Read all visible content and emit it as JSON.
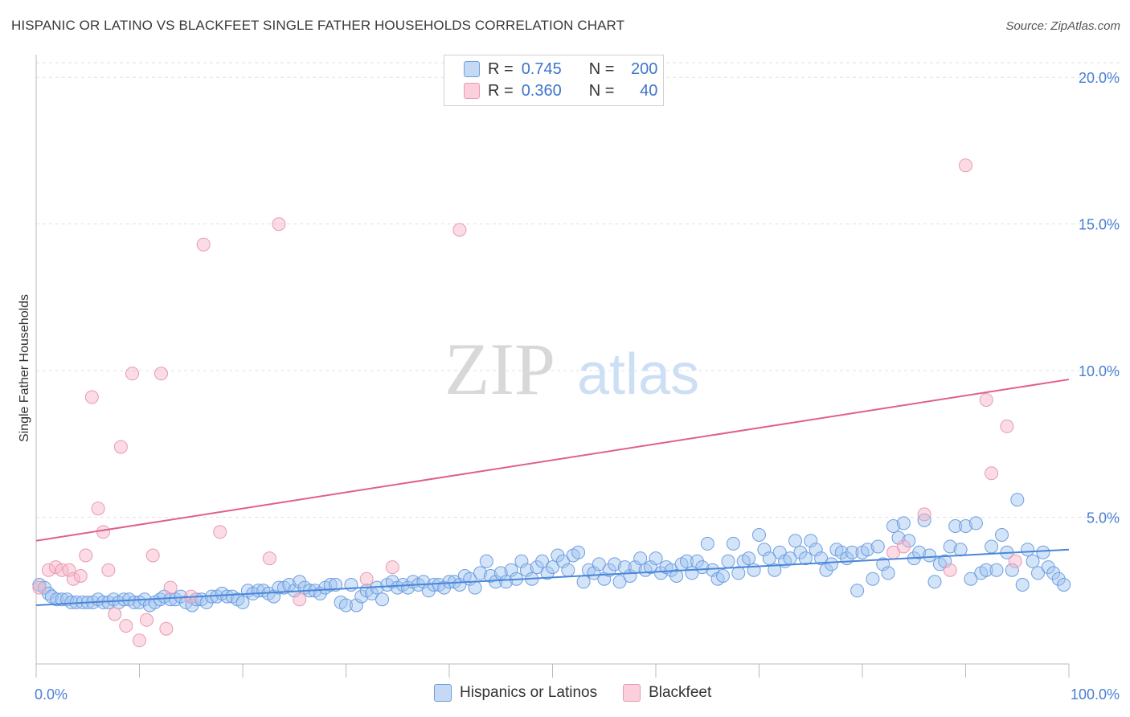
{
  "title": "HISPANIC OR LATINO VS BLACKFEET SINGLE FATHER HOUSEHOLDS CORRELATION CHART",
  "source": "Source: ZipAtlas.com",
  "watermark": {
    "zip": "ZIP",
    "atlas": "atlas"
  },
  "legend": {
    "r_label": "R =",
    "n_label": "N =",
    "rows": [
      {
        "r": "0.745",
        "n": "200",
        "fill": "#c5d9f5",
        "stroke": "#6d9ee0"
      },
      {
        "r": "0.360",
        "n": "40",
        "fill": "#fbd0dc",
        "stroke": "#e89ab2"
      }
    ]
  },
  "bottom_legend": [
    {
      "label": "Hispanics or Latinos",
      "fill": "#c5d9f5",
      "stroke": "#6d9ee0"
    },
    {
      "label": "Blackfeet",
      "fill": "#fbd0dc",
      "stroke": "#e89ab2"
    }
  ],
  "chart_data": {
    "type": "scatter",
    "title": "HISPANIC OR LATINO VS BLACKFEET SINGLE FATHER HOUSEHOLDS CORRELATION CHART",
    "xlabel": "",
    "ylabel": "Single Father Households",
    "xlim": [
      0,
      100
    ],
    "ylim": [
      0,
      20.5
    ],
    "x_tick_labels": [
      "0.0%",
      "100.0%"
    ],
    "y_ticks": [
      5,
      10,
      15,
      20
    ],
    "y_tick_labels": [
      "5.0%",
      "10.0%",
      "15.0%",
      "20.0%"
    ],
    "series": [
      {
        "name": "Hispanics or Latinos",
        "color": "#4a86d8",
        "fill": "rgba(160,196,240,0.45)",
        "stroke": "#6d9ee0",
        "trend": {
          "x": [
            0,
            100
          ],
          "y": [
            2.0,
            3.9
          ]
        },
        "points": [
          [
            0.3,
            2.7
          ],
          [
            0.8,
            2.6
          ],
          [
            1.2,
            2.4
          ],
          [
            1.5,
            2.3
          ],
          [
            2.0,
            2.2
          ],
          [
            2.5,
            2.2
          ],
          [
            3.0,
            2.2
          ],
          [
            3.4,
            2.1
          ],
          [
            3.9,
            2.1
          ],
          [
            4.5,
            2.1
          ],
          [
            5.0,
            2.1
          ],
          [
            5.5,
            2.1
          ],
          [
            6.0,
            2.2
          ],
          [
            6.5,
            2.1
          ],
          [
            7.0,
            2.1
          ],
          [
            7.5,
            2.2
          ],
          [
            8.0,
            2.1
          ],
          [
            8.5,
            2.2
          ],
          [
            9.0,
            2.2
          ],
          [
            9.5,
            2.1
          ],
          [
            10.0,
            2.1
          ],
          [
            10.5,
            2.2
          ],
          [
            11.0,
            2.0
          ],
          [
            11.5,
            2.1
          ],
          [
            12.0,
            2.2
          ],
          [
            12.4,
            2.3
          ],
          [
            13.0,
            2.2
          ],
          [
            13.5,
            2.2
          ],
          [
            14.0,
            2.3
          ],
          [
            14.5,
            2.1
          ],
          [
            15.1,
            2.0
          ],
          [
            15.5,
            2.2
          ],
          [
            16.0,
            2.2
          ],
          [
            16.5,
            2.1
          ],
          [
            17.0,
            2.3
          ],
          [
            17.5,
            2.3
          ],
          [
            18.0,
            2.4
          ],
          [
            18.5,
            2.3
          ],
          [
            19.0,
            2.3
          ],
          [
            19.5,
            2.2
          ],
          [
            20.0,
            2.1
          ],
          [
            20.5,
            2.5
          ],
          [
            21.0,
            2.4
          ],
          [
            21.5,
            2.5
          ],
          [
            22.0,
            2.5
          ],
          [
            22.5,
            2.4
          ],
          [
            23.0,
            2.3
          ],
          [
            23.5,
            2.6
          ],
          [
            24.0,
            2.6
          ],
          [
            24.5,
            2.7
          ],
          [
            25.0,
            2.5
          ],
          [
            25.5,
            2.8
          ],
          [
            26.0,
            2.6
          ],
          [
            26.5,
            2.5
          ],
          [
            27.0,
            2.5
          ],
          [
            27.5,
            2.4
          ],
          [
            28.0,
            2.6
          ],
          [
            28.5,
            2.7
          ],
          [
            29.0,
            2.7
          ],
          [
            29.5,
            2.1
          ],
          [
            30.0,
            2.0
          ],
          [
            30.5,
            2.7
          ],
          [
            31.0,
            2.0
          ],
          [
            31.5,
            2.3
          ],
          [
            32.0,
            2.5
          ],
          [
            32.5,
            2.4
          ],
          [
            33.0,
            2.6
          ],
          [
            33.5,
            2.2
          ],
          [
            34.0,
            2.7
          ],
          [
            34.5,
            2.8
          ],
          [
            35.0,
            2.6
          ],
          [
            35.5,
            2.7
          ],
          [
            36.0,
            2.6
          ],
          [
            36.5,
            2.8
          ],
          [
            37.0,
            2.7
          ],
          [
            37.5,
            2.8
          ],
          [
            38.0,
            2.5
          ],
          [
            38.5,
            2.7
          ],
          [
            39.0,
            2.7
          ],
          [
            39.5,
            2.6
          ],
          [
            40.0,
            2.8
          ],
          [
            40.5,
            2.8
          ],
          [
            41.0,
            2.7
          ],
          [
            41.5,
            3.0
          ],
          [
            42.0,
            2.9
          ],
          [
            42.5,
            2.6
          ],
          [
            43.0,
            3.1
          ],
          [
            43.6,
            3.5
          ],
          [
            44.0,
            3.0
          ],
          [
            44.5,
            2.8
          ],
          [
            45.0,
            3.1
          ],
          [
            45.5,
            2.8
          ],
          [
            46.0,
            3.2
          ],
          [
            46.5,
            2.9
          ],
          [
            47.0,
            3.5
          ],
          [
            47.5,
            3.2
          ],
          [
            48.0,
            2.9
          ],
          [
            48.5,
            3.3
          ],
          [
            49.0,
            3.5
          ],
          [
            49.5,
            3.1
          ],
          [
            50.0,
            3.3
          ],
          [
            50.5,
            3.7
          ],
          [
            51.0,
            3.5
          ],
          [
            51.5,
            3.2
          ],
          [
            52.0,
            3.7
          ],
          [
            52.5,
            3.8
          ],
          [
            53.0,
            2.8
          ],
          [
            53.5,
            3.2
          ],
          [
            54.0,
            3.1
          ],
          [
            54.5,
            3.4
          ],
          [
            55.0,
            2.9
          ],
          [
            55.5,
            3.2
          ],
          [
            56.0,
            3.4
          ],
          [
            56.5,
            2.8
          ],
          [
            57.0,
            3.3
          ],
          [
            57.5,
            3.0
          ],
          [
            58.0,
            3.3
          ],
          [
            58.5,
            3.6
          ],
          [
            59.0,
            3.2
          ],
          [
            59.5,
            3.3
          ],
          [
            60.0,
            3.6
          ],
          [
            60.5,
            3.1
          ],
          [
            61.0,
            3.3
          ],
          [
            61.5,
            3.2
          ],
          [
            62.0,
            3.0
          ],
          [
            62.5,
            3.4
          ],
          [
            63.0,
            3.5
          ],
          [
            63.5,
            3.1
          ],
          [
            64.0,
            3.5
          ],
          [
            64.5,
            3.3
          ],
          [
            65.0,
            4.1
          ],
          [
            65.5,
            3.2
          ],
          [
            66.0,
            2.9
          ],
          [
            66.5,
            3.0
          ],
          [
            67.0,
            3.5
          ],
          [
            67.5,
            4.1
          ],
          [
            68.0,
            3.1
          ],
          [
            68.5,
            3.5
          ],
          [
            69.0,
            3.6
          ],
          [
            69.5,
            3.2
          ],
          [
            70.0,
            4.4
          ],
          [
            70.5,
            3.9
          ],
          [
            71.0,
            3.6
          ],
          [
            71.5,
            3.2
          ],
          [
            72.0,
            3.8
          ],
          [
            72.5,
            3.5
          ],
          [
            73.0,
            3.6
          ],
          [
            73.5,
            4.2
          ],
          [
            74.0,
            3.8
          ],
          [
            74.5,
            3.6
          ],
          [
            75.0,
            4.2
          ],
          [
            75.5,
            3.9
          ],
          [
            76.0,
            3.6
          ],
          [
            76.5,
            3.2
          ],
          [
            77.0,
            3.4
          ],
          [
            77.5,
            3.9
          ],
          [
            78.0,
            3.8
          ],
          [
            78.5,
            3.6
          ],
          [
            79.0,
            3.8
          ],
          [
            79.5,
            2.5
          ],
          [
            80.0,
            3.8
          ],
          [
            80.5,
            3.9
          ],
          [
            81.0,
            2.9
          ],
          [
            81.5,
            4.0
          ],
          [
            82.0,
            3.4
          ],
          [
            82.5,
            3.1
          ],
          [
            83.0,
            4.7
          ],
          [
            83.5,
            4.3
          ],
          [
            84.0,
            4.8
          ],
          [
            84.5,
            4.2
          ],
          [
            85.0,
            3.6
          ],
          [
            85.5,
            3.8
          ],
          [
            86.0,
            4.9
          ],
          [
            86.5,
            3.7
          ],
          [
            87.0,
            2.8
          ],
          [
            87.5,
            3.4
          ],
          [
            88.0,
            3.5
          ],
          [
            88.5,
            4.0
          ],
          [
            89.0,
            4.7
          ],
          [
            89.5,
            3.9
          ],
          [
            90.0,
            4.7
          ],
          [
            90.5,
            2.9
          ],
          [
            91.0,
            4.8
          ],
          [
            91.5,
            3.1
          ],
          [
            92.0,
            3.2
          ],
          [
            92.5,
            4.0
          ],
          [
            93.0,
            3.2
          ],
          [
            93.5,
            4.4
          ],
          [
            94.0,
            3.8
          ],
          [
            94.5,
            3.2
          ],
          [
            95.0,
            5.6
          ],
          [
            95.5,
            2.7
          ],
          [
            96.0,
            3.9
          ],
          [
            96.5,
            3.5
          ],
          [
            97.0,
            3.1
          ],
          [
            97.5,
            3.8
          ],
          [
            98.0,
            3.3
          ],
          [
            98.5,
            3.1
          ],
          [
            99.0,
            2.9
          ],
          [
            99.5,
            2.7
          ]
        ]
      },
      {
        "name": "Blackfeet",
        "color": "#e0608a",
        "fill": "rgba(246,178,198,0.45)",
        "stroke": "#e89ab2",
        "trend": {
          "x": [
            0,
            100
          ],
          "y": [
            4.2,
            9.7
          ]
        },
        "points": [
          [
            0.3,
            2.6
          ],
          [
            1.2,
            3.2
          ],
          [
            1.9,
            3.3
          ],
          [
            2.5,
            3.2
          ],
          [
            3.2,
            3.2
          ],
          [
            3.6,
            2.9
          ],
          [
            4.3,
            3.0
          ],
          [
            4.8,
            3.7
          ],
          [
            5.4,
            9.1
          ],
          [
            6.0,
            5.3
          ],
          [
            6.5,
            4.5
          ],
          [
            7.0,
            3.2
          ],
          [
            7.6,
            1.7
          ],
          [
            8.2,
            7.4
          ],
          [
            8.7,
            1.3
          ],
          [
            9.3,
            9.9
          ],
          [
            10.0,
            0.8
          ],
          [
            10.7,
            1.5
          ],
          [
            11.3,
            3.7
          ],
          [
            12.1,
            9.9
          ],
          [
            12.6,
            1.2
          ],
          [
            13.0,
            2.6
          ],
          [
            15.0,
            2.3
          ],
          [
            16.2,
            14.3
          ],
          [
            17.8,
            4.5
          ],
          [
            22.6,
            3.6
          ],
          [
            23.5,
            15.0
          ],
          [
            25.5,
            2.2
          ],
          [
            32.0,
            2.9
          ],
          [
            34.5,
            3.3
          ],
          [
            41.0,
            14.8
          ],
          [
            83.0,
            3.8
          ],
          [
            84.0,
            4.0
          ],
          [
            86.0,
            5.1
          ],
          [
            88.5,
            3.2
          ],
          [
            90.0,
            17.0
          ],
          [
            92.0,
            9.0
          ],
          [
            92.5,
            6.5
          ],
          [
            94.0,
            8.1
          ],
          [
            94.8,
            3.5
          ]
        ]
      }
    ]
  }
}
